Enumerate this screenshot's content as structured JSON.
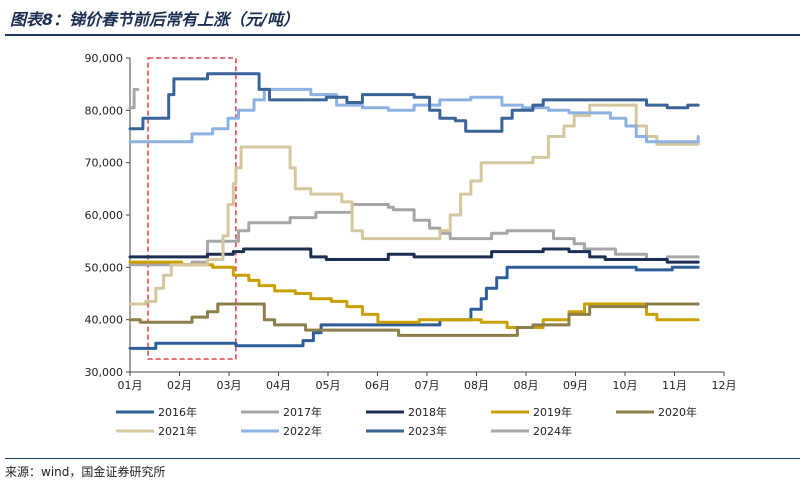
{
  "title": "图表8：锑价春节前后常有上涨（元/吨）",
  "source": "来源：wind，国金证券研究所",
  "chart_data": {
    "type": "line",
    "x_ticks": [
      "01月",
      "02月",
      "03月",
      "04月",
      "05月",
      "06月",
      "07月",
      "08月",
      "08月",
      "09月",
      "10月",
      "11月",
      "12月"
    ],
    "y_ticks": [
      "30,000",
      "40,000",
      "50,000",
      "60,000",
      "70,000",
      "80,000",
      "90,000"
    ],
    "ylim": [
      30000,
      90000
    ],
    "xlim": [
      1,
      12.5
    ],
    "grid": false,
    "legend_position": "bottom",
    "highlight": {
      "x_from": 1.35,
      "x_to": 3.05,
      "style": "red-dashed-box"
    },
    "series": [
      {
        "name": "2016年",
        "color": "#2e5e9a",
        "points": [
          [
            1,
            34500
          ],
          [
            1.45,
            34500
          ],
          [
            1.5,
            35500
          ],
          [
            3,
            35500
          ],
          [
            3.05,
            35000
          ],
          [
            4.2,
            35000
          ],
          [
            4.35,
            36000
          ],
          [
            4.55,
            37500
          ],
          [
            4.7,
            39000
          ],
          [
            5.5,
            39000
          ],
          [
            6.6,
            39000
          ],
          [
            7,
            40000
          ],
          [
            7.4,
            40000
          ],
          [
            7.6,
            42000
          ],
          [
            7.8,
            44000
          ],
          [
            7.9,
            46000
          ],
          [
            8.1,
            48000
          ],
          [
            8.3,
            50000
          ],
          [
            9.2,
            50000
          ],
          [
            9.6,
            50000
          ],
          [
            10.6,
            50000
          ],
          [
            10.8,
            49500
          ],
          [
            11.2,
            49500
          ],
          [
            11.5,
            50000
          ],
          [
            12,
            50000
          ]
        ]
      },
      {
        "name": "2017年",
        "color": "#a6a6a6",
        "points": [
          [
            1,
            50500
          ],
          [
            1.5,
            50500
          ],
          [
            2,
            50500
          ],
          [
            2.2,
            51000
          ],
          [
            2.5,
            55000
          ],
          [
            3,
            55000
          ],
          [
            3.1,
            57000
          ],
          [
            3.3,
            58500
          ],
          [
            3.8,
            58500
          ],
          [
            4.1,
            59500
          ],
          [
            4.6,
            60500
          ],
          [
            5,
            60500
          ],
          [
            5.3,
            62000
          ],
          [
            5.7,
            62000
          ],
          [
            6,
            61500
          ],
          [
            6.1,
            61000
          ],
          [
            6.5,
            59000
          ],
          [
            6.8,
            57500
          ],
          [
            7,
            56500
          ],
          [
            7.2,
            55500
          ],
          [
            7.8,
            55500
          ],
          [
            8,
            56500
          ],
          [
            8.3,
            57000
          ],
          [
            8.8,
            57000
          ],
          [
            9.2,
            55500
          ],
          [
            9.6,
            54500
          ],
          [
            9.8,
            53500
          ],
          [
            10.4,
            52500
          ],
          [
            10.8,
            52500
          ],
          [
            11,
            51500
          ],
          [
            11.4,
            52000
          ],
          [
            12,
            52000
          ]
        ]
      },
      {
        "name": "2018年",
        "color": "#1b2f53",
        "points": [
          [
            1,
            52000
          ],
          [
            2.2,
            52000
          ],
          [
            2.5,
            52500
          ],
          [
            3,
            53000
          ],
          [
            3.2,
            53500
          ],
          [
            4.2,
            53500
          ],
          [
            4.5,
            52000
          ],
          [
            4.8,
            51500
          ],
          [
            5.6,
            51500
          ],
          [
            6,
            52500
          ],
          [
            6.5,
            52000
          ],
          [
            7.5,
            52000
          ],
          [
            8,
            53000
          ],
          [
            8.5,
            53000
          ],
          [
            9,
            53500
          ],
          [
            9.5,
            53000
          ],
          [
            9.9,
            52000
          ],
          [
            10.2,
            51500
          ],
          [
            11,
            51500
          ],
          [
            11.4,
            51000
          ],
          [
            12,
            51000
          ]
        ]
      },
      {
        "name": "2019年",
        "color": "#c9a000",
        "points": [
          [
            1,
            51000
          ],
          [
            2,
            50500
          ],
          [
            2.6,
            50000
          ],
          [
            3,
            48500
          ],
          [
            3.3,
            47500
          ],
          [
            3.5,
            46500
          ],
          [
            3.8,
            45500
          ],
          [
            4.2,
            45000
          ],
          [
            4.5,
            44000
          ],
          [
            4.9,
            43500
          ],
          [
            5.2,
            42500
          ],
          [
            5.5,
            41000
          ],
          [
            5.8,
            39500
          ],
          [
            6.3,
            39500
          ],
          [
            6.6,
            40000
          ],
          [
            7.4,
            40000
          ],
          [
            7.8,
            39500
          ],
          [
            8.3,
            38500
          ],
          [
            8.7,
            38500
          ],
          [
            9,
            40000
          ],
          [
            9.5,
            41500
          ],
          [
            9.8,
            43000
          ],
          [
            10.8,
            43000
          ],
          [
            11,
            41000
          ],
          [
            11.2,
            40000
          ],
          [
            12,
            40000
          ]
        ]
      },
      {
        "name": "2020年",
        "color": "#8c7f4a",
        "points": [
          [
            1,
            40000
          ],
          [
            1.2,
            39500
          ],
          [
            1.8,
            39500
          ],
          [
            2.2,
            40500
          ],
          [
            2.5,
            41500
          ],
          [
            2.7,
            43000
          ],
          [
            3.2,
            43000
          ],
          [
            3.6,
            40000
          ],
          [
            3.8,
            39000
          ],
          [
            4.4,
            38000
          ],
          [
            5.5,
            38000
          ],
          [
            6.2,
            37000
          ],
          [
            8,
            37000
          ],
          [
            8.5,
            38500
          ],
          [
            8.8,
            39000
          ],
          [
            9.2,
            39000
          ],
          [
            9.5,
            41000
          ],
          [
            9.7,
            41000
          ],
          [
            9.9,
            42500
          ],
          [
            10.5,
            42500
          ],
          [
            11,
            43000
          ],
          [
            12,
            43000
          ]
        ]
      },
      {
        "name": "2021年",
        "color": "#d4c79d",
        "points": [
          [
            1,
            43000
          ],
          [
            1.3,
            43500
          ],
          [
            1.5,
            46000
          ],
          [
            1.65,
            48500
          ],
          [
            1.8,
            50500
          ],
          [
            2.35,
            50500
          ],
          [
            2.5,
            51500
          ],
          [
            2.8,
            56000
          ],
          [
            2.9,
            62000
          ],
          [
            3,
            66000
          ],
          [
            3.05,
            69000
          ],
          [
            3.15,
            73000
          ],
          [
            4,
            73000
          ],
          [
            4.1,
            69000
          ],
          [
            4.2,
            65000
          ],
          [
            4.5,
            64000
          ],
          [
            4.8,
            64000
          ],
          [
            5.1,
            62500
          ],
          [
            5.3,
            57000
          ],
          [
            5.5,
            55500
          ],
          [
            6.8,
            55500
          ],
          [
            7,
            57000
          ],
          [
            7.2,
            60000
          ],
          [
            7.4,
            64000
          ],
          [
            7.6,
            66500
          ],
          [
            7.8,
            70000
          ],
          [
            8.5,
            70000
          ],
          [
            8.8,
            71000
          ],
          [
            9.1,
            75000
          ],
          [
            9.4,
            77000
          ],
          [
            9.6,
            79000
          ],
          [
            9.9,
            81000
          ],
          [
            10.5,
            81000
          ],
          [
            10.8,
            77000
          ],
          [
            11,
            75000
          ],
          [
            11.2,
            73500
          ],
          [
            12,
            74500
          ]
        ]
      },
      {
        "name": "2022年",
        "color": "#8db1e3",
        "points": [
          [
            1,
            74000
          ],
          [
            1.8,
            74000
          ],
          [
            2.2,
            75500
          ],
          [
            2.6,
            76500
          ],
          [
            2.9,
            78500
          ],
          [
            3.1,
            80000
          ],
          [
            3.4,
            82000
          ],
          [
            3.6,
            84000
          ],
          [
            4.2,
            84000
          ],
          [
            4.5,
            83000
          ],
          [
            5,
            81000
          ],
          [
            5.5,
            80500
          ],
          [
            6,
            80000
          ],
          [
            6.5,
            81000
          ],
          [
            7,
            82000
          ],
          [
            7.6,
            82500
          ],
          [
            8.2,
            81000
          ],
          [
            8.6,
            80500
          ],
          [
            9.1,
            80000
          ],
          [
            9.5,
            79500
          ],
          [
            10,
            79500
          ],
          [
            10.3,
            78500
          ],
          [
            10.6,
            77000
          ],
          [
            10.8,
            75000
          ],
          [
            11,
            74000
          ],
          [
            11.8,
            74000
          ],
          [
            12,
            75000
          ]
        ]
      },
      {
        "name": "2023年",
        "color": "#3a6498",
        "points": [
          [
            1,
            76500
          ],
          [
            1.1,
            76500
          ],
          [
            1.25,
            78500
          ],
          [
            1.55,
            78500
          ],
          [
            1.75,
            83000
          ],
          [
            1.85,
            86000
          ],
          [
            2.35,
            86000
          ],
          [
            2.5,
            87000
          ],
          [
            3.3,
            87000
          ],
          [
            3.5,
            84000
          ],
          [
            3.7,
            82000
          ],
          [
            4,
            82000
          ],
          [
            4.8,
            82500
          ],
          [
            5.2,
            81500
          ],
          [
            5.5,
            83000
          ],
          [
            6.2,
            83000
          ],
          [
            6.5,
            82500
          ],
          [
            6.8,
            80000
          ],
          [
            7,
            78500
          ],
          [
            7.3,
            78000
          ],
          [
            7.5,
            76000
          ],
          [
            8,
            76000
          ],
          [
            8.2,
            78500
          ],
          [
            8.4,
            80000
          ],
          [
            8.8,
            81000
          ],
          [
            9,
            82000
          ],
          [
            9.6,
            82000
          ],
          [
            10.2,
            82000
          ],
          [
            10.6,
            82000
          ],
          [
            11,
            81000
          ],
          [
            11.4,
            80500
          ],
          [
            11.8,
            81000
          ],
          [
            12,
            81000
          ]
        ]
      },
      {
        "name": "2024年",
        "color": "#a6a6a6",
        "points": [
          [
            1,
            80500
          ],
          [
            1.08,
            84000
          ],
          [
            1.15,
            84000
          ]
        ]
      }
    ]
  }
}
